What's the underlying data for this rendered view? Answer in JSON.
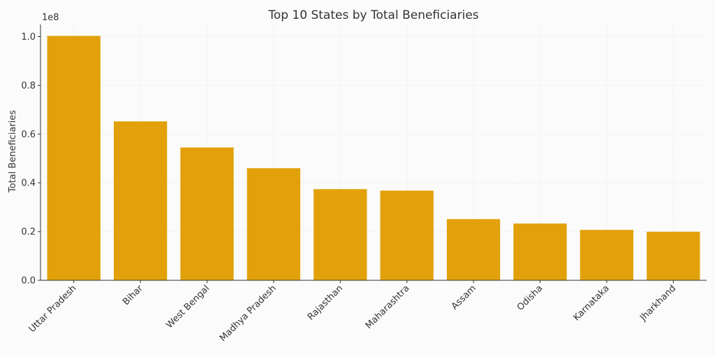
{
  "chart_data": {
    "type": "bar",
    "title": "Top 10 States by Total Beneficiaries",
    "xlabel": "",
    "ylabel": "Total Beneficiaries",
    "offset_text": "1e8",
    "scale": 100000000,
    "categories": [
      "Uttar Pradesh",
      "Bihar",
      "West Bengal",
      "Madhya Pradesh",
      "Rajasthan",
      "Maharashtra",
      "Assam",
      "Odisha",
      "Karnataka",
      "Jharkhand"
    ],
    "values": [
      100300000,
      65200000,
      54500000,
      46000000,
      37400000,
      36800000,
      25100000,
      23300000,
      20700000,
      19900000
    ],
    "ylim": [
      0,
      105000000
    ],
    "yticks": [
      0,
      20000000,
      40000000,
      60000000,
      80000000,
      100000000
    ],
    "ytick_labels": [
      "0.0",
      "0.2",
      "0.4",
      "0.6",
      "0.8",
      "1.0"
    ],
    "grid": true,
    "bar_color": "#E2A10A",
    "grid_color": "#e6e6e6"
  }
}
